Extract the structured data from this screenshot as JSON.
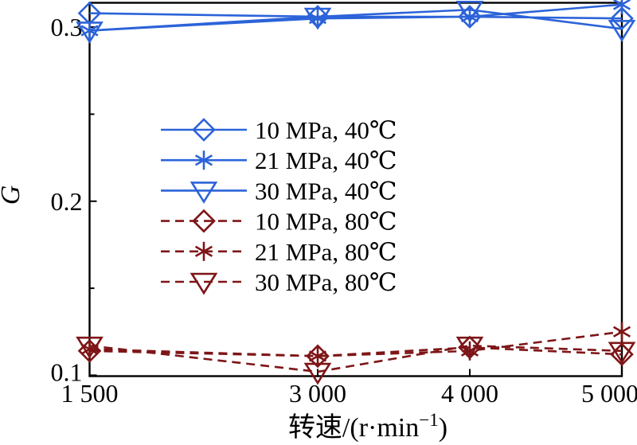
{
  "chart_data": {
    "type": "line",
    "title": "",
    "xlabel": "转速/(r·min⁻¹)",
    "xlabel_base": "转速/(r·min",
    "xlabel_sup": "−1",
    "xlabel_close": ")",
    "ylabel": "G",
    "x": [
      1500,
      3000,
      4000,
      5000
    ],
    "x_tick_labels": [
      "1 500",
      "3 000",
      "4 000",
      "5 000"
    ],
    "y_major_ticks": [
      0.1,
      0.2,
      0.3
    ],
    "y_tick_labels": [
      "0.1",
      "0.2",
      "0.3"
    ],
    "y_minor_ticks": [
      0.15,
      0.25
    ],
    "xlim": [
      1500,
      5000
    ],
    "ylim": [
      0.0995,
      0.314
    ],
    "grid": false,
    "legend_position": "inside-upper-left-no-frame",
    "colors": {
      "axis": "#000000",
      "background": "#ffffff",
      "cold_series": "#2c63d9",
      "hot_series": "#7e1517"
    },
    "series": [
      {
        "name": "10 MPa, 40℃",
        "color": "#2c63d9",
        "line": "solid",
        "marker": "diamond",
        "values": [
          0.308,
          0.306,
          0.306,
          0.305
        ]
      },
      {
        "name": "21 MPa, 40℃",
        "color": "#2c63d9",
        "line": "solid",
        "marker": "asterisk",
        "values": [
          0.298,
          0.305,
          0.306,
          0.313
        ]
      },
      {
        "name": "30 MPa, 40℃",
        "color": "#2c63d9",
        "line": "solid",
        "marker": "triangle-down",
        "values": [
          0.298,
          0.306,
          0.31,
          0.299
        ]
      },
      {
        "name": "10 MPa, 80℃",
        "color": "#7e1517",
        "line": "dashed",
        "marker": "diamond",
        "values": [
          0.114,
          0.111,
          0.116,
          0.112
        ]
      },
      {
        "name": "21 MPa, 80℃",
        "color": "#7e1517",
        "line": "dashed",
        "marker": "asterisk",
        "values": [
          0.115,
          0.111,
          0.114,
          0.125
        ]
      },
      {
        "name": "30 MPa, 80℃",
        "color": "#7e1517",
        "line": "dashed",
        "marker": "triangle-down",
        "values": [
          0.117,
          0.102,
          0.117,
          0.114
        ]
      }
    ]
  }
}
